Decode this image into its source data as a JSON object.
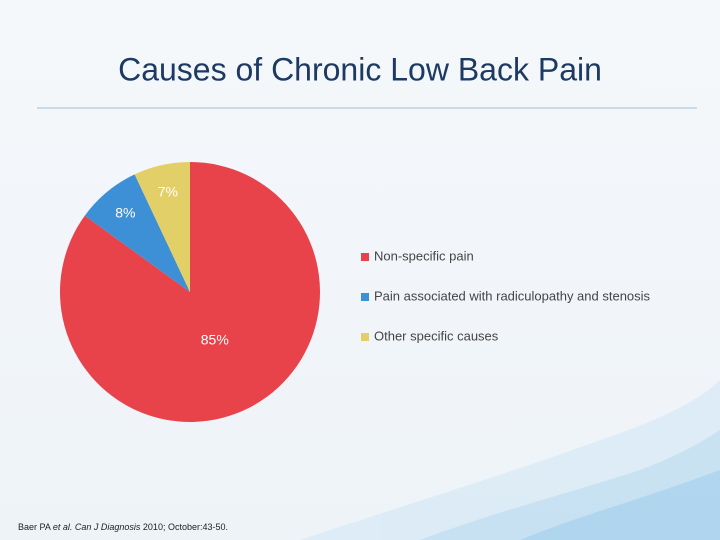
{
  "chart_data": {
    "type": "pie",
    "title": "Causes of Chronic Low Back Pain",
    "categories": [
      "Non-specific pain",
      "Pain associated with radiculopathy and stenosis",
      "Other specific causes"
    ],
    "values": [
      85,
      8,
      7
    ],
    "value_labels": [
      "85%",
      "8%",
      "7%"
    ],
    "colors": [
      "#e8434b",
      "#3d8fd6",
      "#e3cf68"
    ],
    "legend": "right"
  },
  "footnote": [
    "Baer PA ",
    "et al.",
    " Can J Diagnosis",
    " 2010; October:43-50."
  ]
}
